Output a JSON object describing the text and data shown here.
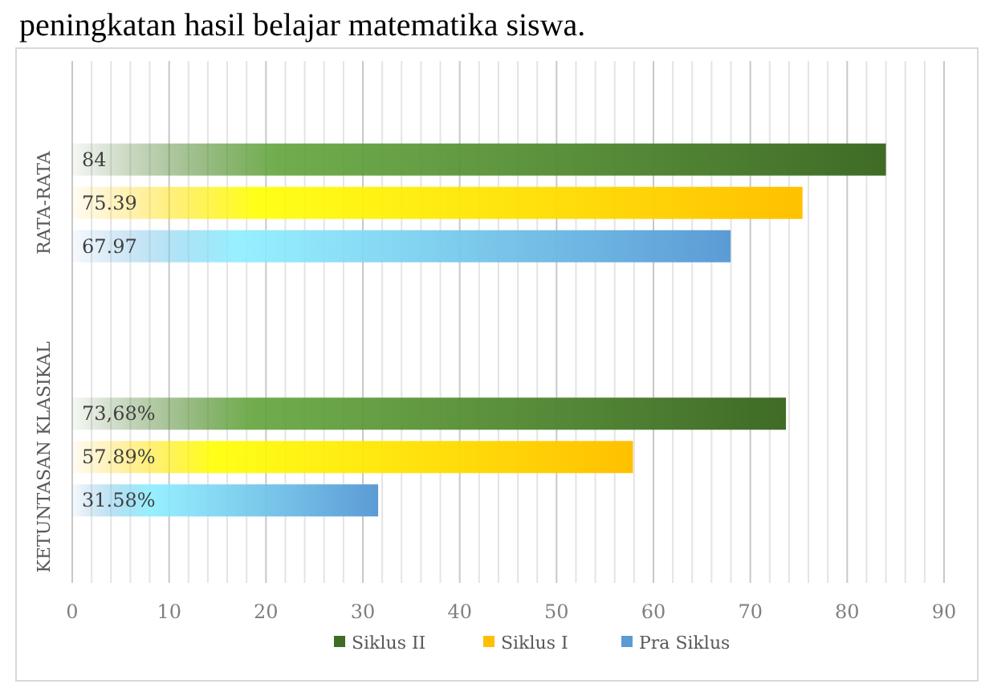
{
  "chart_data": {
    "type": "bar",
    "orientation": "horizontal",
    "title": "peningkatan hasil belajar matematika siswa.",
    "categories": [
      "RATA-RATA",
      "KETUNTASAN KLASIKAL"
    ],
    "series": [
      {
        "name": "Siklus II",
        "color": "#3f6b26",
        "values": [
          84,
          73.68
        ],
        "value_labels": [
          "84",
          "73,68%"
        ]
      },
      {
        "name": "Siklus I",
        "color": "#ffc000",
        "values": [
          75.39,
          57.89
        ],
        "value_labels": [
          "75.39",
          "57.89%"
        ]
      },
      {
        "name": "Pra Siklus",
        "color": "#5b9bd5",
        "values": [
          67.97,
          31.58
        ],
        "value_labels": [
          "67.97",
          "31.58%"
        ]
      }
    ],
    "xlim": [
      0,
      90
    ],
    "xticks": [
      0,
      {
        "value": 2,
        "label": null
      },
      {
        "value": 4,
        "label": null
      },
      {
        "value": 6,
        "label": null
      },
      {
        "value": 8,
        "label": null
      },
      10,
      {
        "value": 12,
        "label": null
      },
      {
        "value": 14,
        "label": null
      },
      {
        "value": 16,
        "label": null
      },
      {
        "value": 18,
        "label": null
      },
      20,
      {
        "value": 22,
        "label": null
      },
      {
        "value": 24,
        "label": null
      },
      {
        "value": 26,
        "label": null
      },
      {
        "value": 28,
        "label": null
      },
      30,
      {
        "value": 32,
        "label": null
      },
      {
        "value": 34,
        "label": null
      },
      {
        "value": 36,
        "label": null
      },
      {
        "value": 38,
        "label": null
      },
      40,
      {
        "value": 42,
        "label": null
      },
      {
        "value": 44,
        "label": null
      },
      {
        "value": 46,
        "label": null
      },
      {
        "value": 48,
        "label": null
      },
      50,
      {
        "value": 52,
        "label": null
      },
      {
        "value": 54,
        "label": null
      },
      {
        "value": 56,
        "label": null
      },
      {
        "value": 58,
        "label": null
      },
      60,
      {
        "value": 62,
        "label": null
      },
      {
        "value": 64,
        "label": null
      },
      {
        "value": 66,
        "label": null
      },
      {
        "value": 68,
        "label": null
      },
      70,
      {
        "value": 72,
        "label": null
      },
      {
        "value": 74,
        "label": null
      },
      {
        "value": 76,
        "label": null
      },
      {
        "value": 78,
        "label": null
      },
      80,
      {
        "value": 82,
        "label": null
      },
      {
        "value": 84,
        "label": null
      },
      {
        "value": 86,
        "label": null
      },
      {
        "value": 88,
        "label": null
      },
      90
    ],
    "grid": "x",
    "legend": "bottom"
  }
}
